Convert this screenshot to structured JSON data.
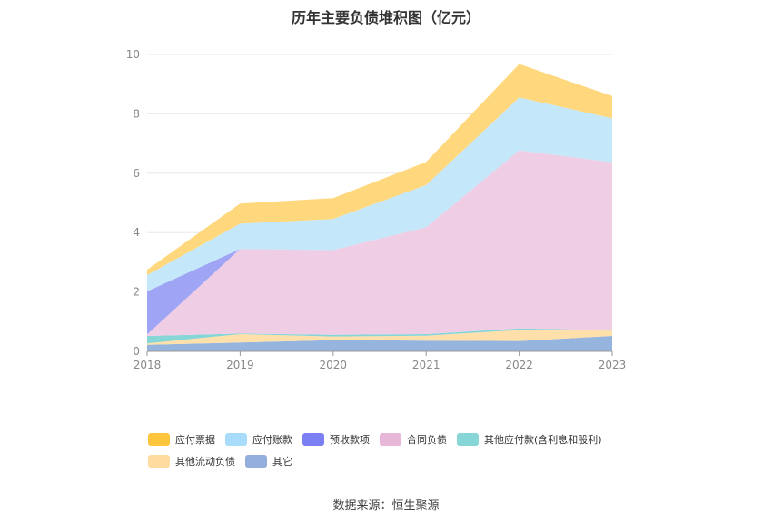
{
  "chart_data": {
    "type": "area",
    "stacked": true,
    "title": "历年主要负债堆积图（亿元）",
    "xlabel": "",
    "ylabel": "",
    "categories": [
      "2018",
      "2019",
      "2020",
      "2021",
      "2022",
      "2023"
    ],
    "ylim": [
      0,
      10
    ],
    "yticks": [
      "0",
      "2",
      "4",
      "6",
      "8",
      "10"
    ],
    "grid": true,
    "legend_position": "bottom",
    "series": [
      {
        "name": "其它",
        "color": "#95b4de",
        "values": [
          0.22,
          0.3,
          0.38,
          0.36,
          0.35,
          0.52
        ]
      },
      {
        "name": "其他流动负债",
        "color": "#ffe0aa",
        "values": [
          0.05,
          0.28,
          0.12,
          0.17,
          0.37,
          0.18
        ]
      },
      {
        "name": "其他应付款(含利息和股利)",
        "color": "#86d6d8",
        "values": [
          0.25,
          0.02,
          0.06,
          0.05,
          0.05,
          0.02
        ]
      },
      {
        "name": "合同负债",
        "color": "#efcde4",
        "values": [
          0.05,
          2.85,
          2.85,
          3.6,
          6.0,
          5.65
        ]
      },
      {
        "name": "预收款项",
        "color": "#a0a4f5",
        "values": [
          1.45,
          0.0,
          0.0,
          0.0,
          0.0,
          0.0
        ]
      },
      {
        "name": "应付账款",
        "color": "#c4e8fa",
        "values": [
          0.55,
          0.85,
          1.05,
          1.42,
          1.78,
          1.48
        ]
      },
      {
        "name": "应付票据",
        "color": "#ffd87e",
        "values": [
          0.18,
          0.68,
          0.7,
          0.78,
          1.13,
          0.75
        ]
      }
    ],
    "legend": [
      {
        "name": "应付票据",
        "color": "#ffc53d"
      },
      {
        "name": "应付账款",
        "color": "#a8dcfb"
      },
      {
        "name": "预收款项",
        "color": "#7b7ff1"
      },
      {
        "name": "合同负债",
        "color": "#e6b7d8"
      },
      {
        "name": "其他应付款(含利息和股利)",
        "color": "#86d6d8"
      },
      {
        "name": "其他流动负债",
        "color": "#ffdba0"
      },
      {
        "name": "其它",
        "color": "#94afdc"
      }
    ]
  },
  "source": "数据来源：恒生聚源"
}
